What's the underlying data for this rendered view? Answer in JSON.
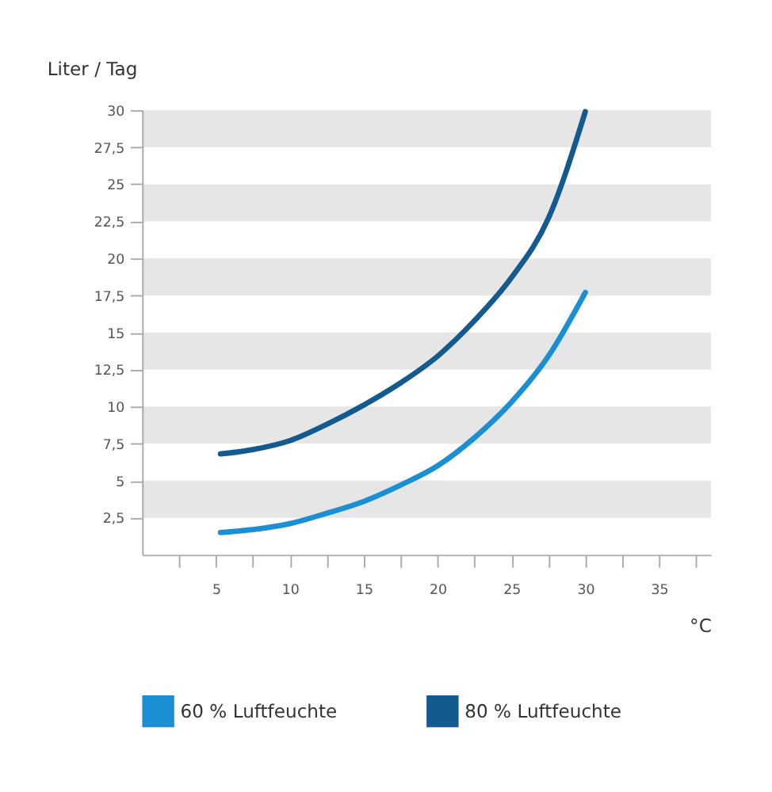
{
  "chart_data": {
    "type": "line",
    "ylabel": "Liter / Tag",
    "xlabel": "°C",
    "series": [
      {
        "name": "60 % Luftfeuchte",
        "color": "#1a8fd4",
        "x": [
          5.3,
          7.5,
          10,
          12.5,
          15,
          17.5,
          20,
          22.5,
          25,
          27.5,
          30
        ],
        "values": [
          1.5,
          1.7,
          2.1,
          2.8,
          3.6,
          4.7,
          6.0,
          7.9,
          10.3,
          13.4,
          17.7
        ]
      },
      {
        "name": "80 % Luftfeuchte",
        "color": "#135a8e",
        "x": [
          5.3,
          7.5,
          10,
          12.5,
          15,
          17.5,
          20,
          22.5,
          25,
          27.5,
          30
        ],
        "values": [
          6.8,
          7.1,
          7.7,
          8.8,
          10.1,
          11.6,
          13.4,
          15.8,
          18.7,
          22.7,
          29.9
        ]
      }
    ],
    "xlim": [
      0,
      38.5
    ],
    "ylim": [
      0,
      30
    ],
    "xticks": [
      {
        "value": 2.5,
        "label": null
      },
      5,
      {
        "value": 7.5,
        "label": null
      },
      10,
      {
        "value": 12.5,
        "label": null
      },
      15,
      {
        "value": 17.5,
        "label": null
      },
      20,
      {
        "value": 22.5,
        "label": null
      },
      25,
      {
        "value": 27.5,
        "label": null
      },
      30,
      {
        "value": 32.5,
        "label": null
      },
      35,
      {
        "value": 37.5,
        "label": null
      }
    ],
    "yticks": [
      {
        "value": 2.5,
        "label": "2,5"
      },
      5,
      {
        "value": 7.5,
        "label": "7,5"
      },
      10,
      {
        "value": 12.5,
        "label": "12,5"
      },
      15,
      {
        "value": 17.5,
        "label": "17,5"
      },
      20,
      {
        "value": 22.5,
        "label": "22,5"
      },
      25,
      {
        "value": 27.5,
        "label": "27,5"
      },
      30
    ],
    "bands": [
      {
        "axis": "y",
        "from": 2.5,
        "to": 5,
        "color": "#e6e6e6"
      },
      {
        "axis": "y",
        "from": 7.5,
        "to": 10,
        "color": "#e6e6e6"
      },
      {
        "axis": "y",
        "from": 12.5,
        "to": 15,
        "color": "#e6e6e6"
      },
      {
        "axis": "y",
        "from": 17.5,
        "to": 20,
        "color": "#e6e6e6"
      },
      {
        "axis": "y",
        "from": 22.5,
        "to": 25,
        "color": "#e6e6e6"
      },
      {
        "axis": "y",
        "from": 27.5,
        "to": 30,
        "color": "#e6e6e6"
      }
    ],
    "grid": false,
    "legend": "bottom",
    "line_style": "solid",
    "marker": "none"
  }
}
